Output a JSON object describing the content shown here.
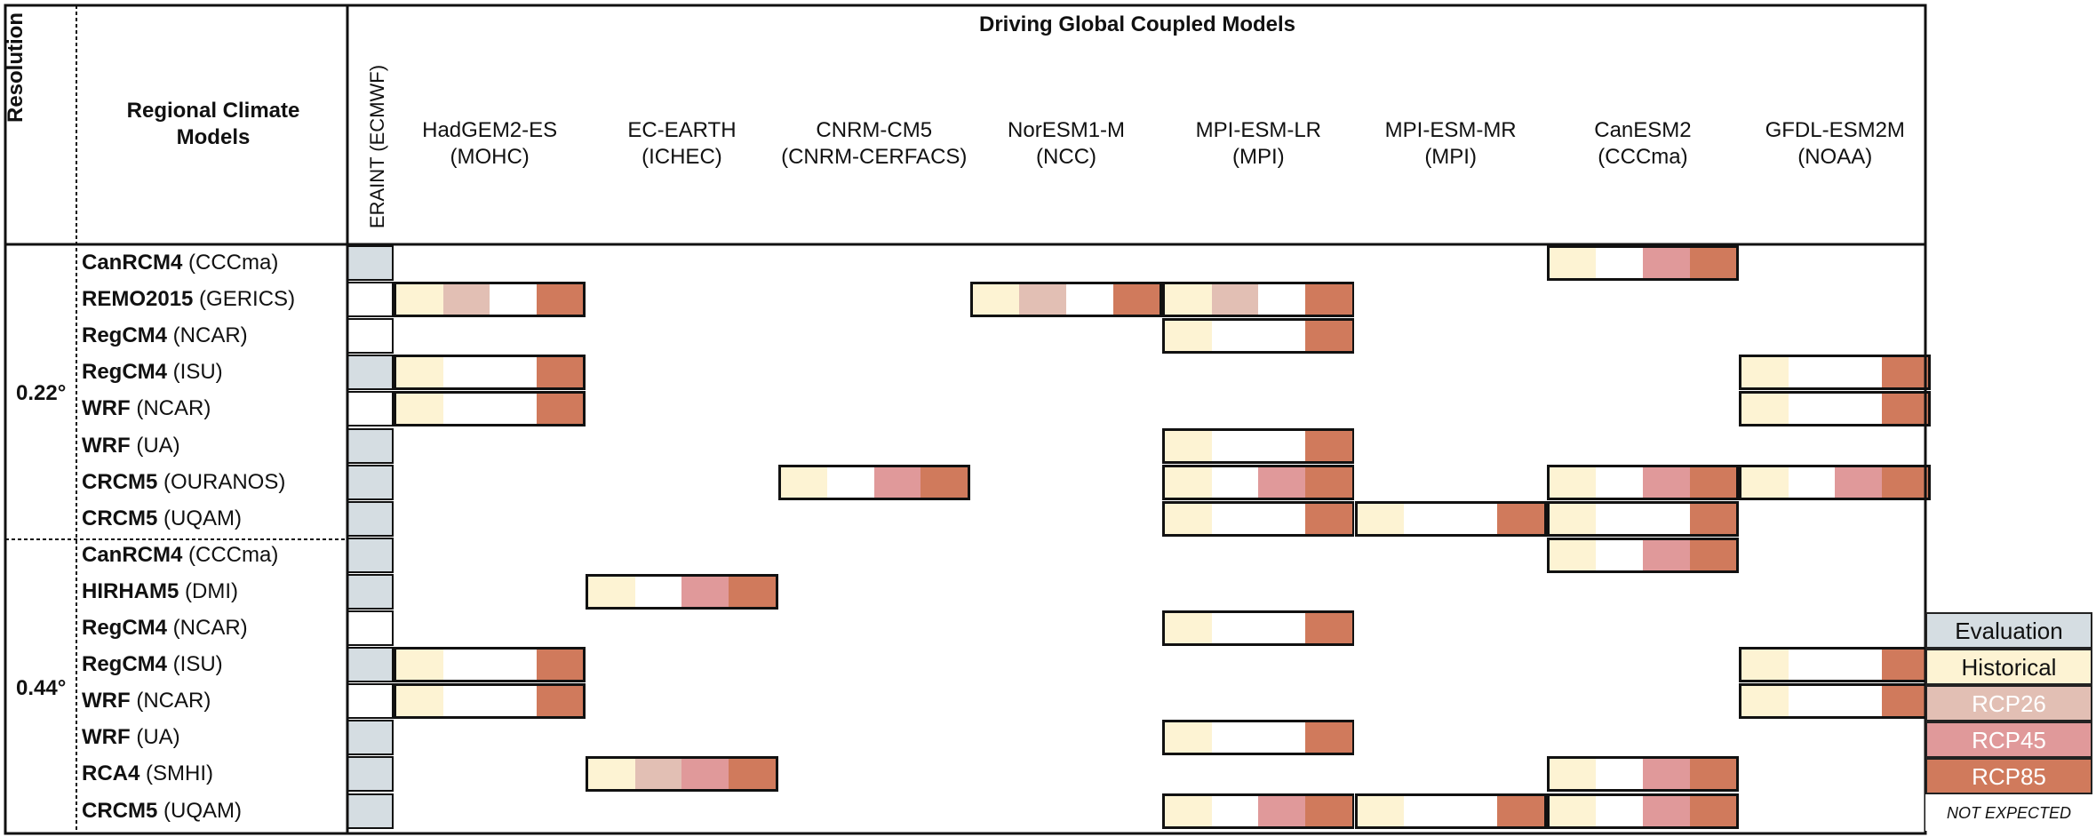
{
  "header": {
    "title": "Driving Global Coupled Models",
    "resolution_label": "Resolution",
    "rcm_label": "Regional Climate Models",
    "eraint_label": "ERAINT (ECMWF)"
  },
  "gcms": [
    {
      "name": "HadGEM2-ES",
      "inst": "(MOHC)"
    },
    {
      "name": "EC-EARTH",
      "inst": "(ICHEC)"
    },
    {
      "name": "CNRM-CM5",
      "inst": "(CNRM-CERFACS)"
    },
    {
      "name": "NorESM1-M",
      "inst": "(NCC)"
    },
    {
      "name": "MPI-ESM-LR",
      "inst": "(MPI)"
    },
    {
      "name": "MPI-ESM-MR",
      "inst": "(MPI)"
    },
    {
      "name": "CanESM2",
      "inst": "(CCCma)"
    },
    {
      "name": "GFDL-ESM2M",
      "inst": "(NOAA)"
    }
  ],
  "resolutions": [
    "0.22°",
    "0.44°"
  ],
  "rows": [
    {
      "model": "CanRCM4",
      "inst": " (CCCma)",
      "eval": true,
      "runs": {
        "CanESM2": [
          1,
          0,
          1,
          1
        ]
      }
    },
    {
      "model": "REMO2015",
      "inst": " (GERICS)",
      "eval": false,
      "runs": {
        "HadGEM2-ES": [
          1,
          1,
          0,
          1
        ],
        "NorESM1-M": [
          1,
          1,
          0,
          1
        ],
        "MPI-ESM-LR": [
          1,
          1,
          0,
          1
        ]
      }
    },
    {
      "model": "RegCM4",
      "inst": " (NCAR)",
      "eval": false,
      "runs": {
        "MPI-ESM-LR": [
          1,
          0,
          0,
          1
        ]
      }
    },
    {
      "model": "RegCM4",
      "inst": " (ISU)",
      "eval": true,
      "runs": {
        "HadGEM2-ES": [
          1,
          0,
          0,
          1
        ],
        "GFDL-ESM2M": [
          1,
          0,
          0,
          1
        ]
      }
    },
    {
      "model": "WRF",
      "inst": " (NCAR)",
      "eval": false,
      "runs": {
        "HadGEM2-ES": [
          1,
          0,
          0,
          1
        ],
        "GFDL-ESM2M": [
          1,
          0,
          0,
          1
        ]
      }
    },
    {
      "model": "WRF",
      "inst": " (UA)",
      "eval": true,
      "runs": {
        "MPI-ESM-LR": [
          1,
          0,
          0,
          1
        ]
      }
    },
    {
      "model": "CRCM5",
      "inst": " (OURANOS)",
      "eval": true,
      "runs": {
        "CNRM-CM5": [
          1,
          0,
          1,
          1
        ],
        "MPI-ESM-LR": [
          1,
          0,
          1,
          1
        ],
        "CanESM2": [
          1,
          0,
          1,
          1
        ],
        "GFDL-ESM2M": [
          1,
          0,
          1,
          1
        ]
      }
    },
    {
      "model": "CRCM5",
      "inst": " (UQAM)",
      "eval": true,
      "runs": {
        "MPI-ESM-LR": [
          1,
          0,
          0,
          1
        ],
        "MPI-ESM-MR": [
          1,
          0,
          0,
          1
        ],
        "CanESM2": [
          1,
          0,
          0,
          1
        ]
      }
    },
    {
      "model": "CanRCM4",
      "inst": " (CCCma)",
      "eval": true,
      "runs": {
        "CanESM2": [
          1,
          0,
          1,
          1
        ]
      }
    },
    {
      "model": "HIRHAM5",
      "inst": " (DMI)",
      "eval": true,
      "runs": {
        "EC-EARTH": [
          1,
          0,
          1,
          1
        ]
      }
    },
    {
      "model": "RegCM4",
      "inst": " (NCAR)",
      "eval": false,
      "runs": {
        "MPI-ESM-LR": [
          1,
          0,
          0,
          1
        ]
      }
    },
    {
      "model": "RegCM4",
      "inst": " (ISU)",
      "eval": true,
      "runs": {
        "HadGEM2-ES": [
          1,
          0,
          0,
          1
        ],
        "GFDL-ESM2M": [
          1,
          0,
          0,
          1
        ]
      }
    },
    {
      "model": "WRF",
      "inst": " (NCAR)",
      "eval": false,
      "runs": {
        "HadGEM2-ES": [
          1,
          0,
          0,
          1
        ],
        "GFDL-ESM2M": [
          1,
          0,
          0,
          1
        ]
      }
    },
    {
      "model": "WRF",
      "inst": " (UA)",
      "eval": true,
      "runs": {
        "MPI-ESM-LR": [
          1,
          0,
          0,
          1
        ]
      }
    },
    {
      "model": "RCA4",
      "inst": " (SMHI)",
      "eval": true,
      "runs": {
        "EC-EARTH": [
          1,
          1,
          1,
          1
        ],
        "CanESM2": [
          1,
          0,
          1,
          1
        ]
      }
    },
    {
      "model": "CRCM5",
      "inst": " (UQAM)",
      "eval": true,
      "runs": {
        "MPI-ESM-LR": [
          1,
          0,
          1,
          1
        ],
        "MPI-ESM-MR": [
          1,
          0,
          0,
          1
        ],
        "CanESM2": [
          1,
          0,
          1,
          1
        ]
      }
    }
  ],
  "legend": [
    {
      "label": "Evaluation",
      "color": "#d5dde2",
      "text_color": "#111111"
    },
    {
      "label": "Historical",
      "color": "#fdf3d3",
      "text_color": "#111111"
    },
    {
      "label": "RCP26",
      "color": "#e2bfb4",
      "text_color": "#ffffff"
    },
    {
      "label": "RCP45",
      "color": "#e0999a",
      "text_color": "#ffffff"
    },
    {
      "label": "RCP85",
      "color": "#d07a5c",
      "text_color": "#ffffff"
    },
    {
      "label": "NOT EXPECTED",
      "color": "#ffffff",
      "text_color": "#111111"
    }
  ],
  "scenario_colors": [
    "#fdf3d3",
    "#e2bfb4",
    "#e0999a",
    "#d07a5c"
  ],
  "eval_color": "#d5dde2"
}
